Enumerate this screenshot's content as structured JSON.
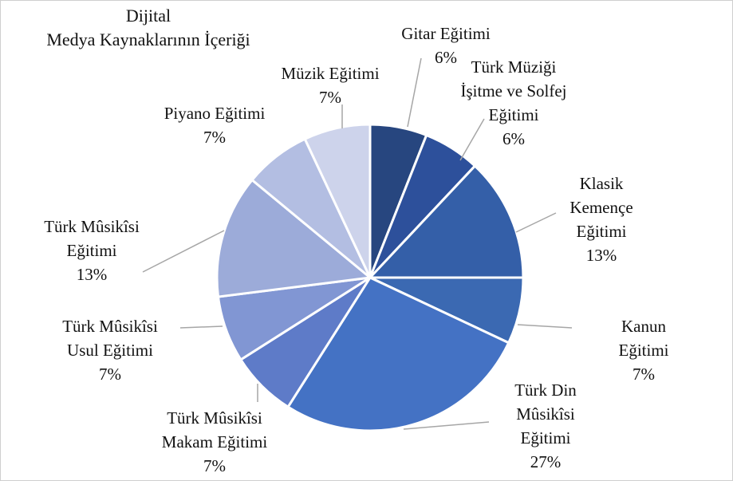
{
  "chart_data": {
    "type": "pie",
    "title": "Dijital\nMedya Kaynaklarının İçeriği",
    "categories": [
      "Gitar Eğitimi",
      "Türk Müziği\nİşitme ve Solfej\nEğitimi",
      "Klasik\nKemençe\nEğitimi",
      "Kanun Eğitimi",
      "Türk Din\nMûsikîsi\nEğitimi",
      "Türk Mûsikîsi\nMakam Eğitimi",
      "Türk Mûsikîsi\nUsul Eğitimi",
      "Türk Mûsikîsi\nEğitimi",
      "Piyano Eğitimi",
      "Müzik Eğitimi"
    ],
    "values": [
      6,
      6,
      13,
      7,
      27,
      7,
      7,
      13,
      7,
      7
    ],
    "value_labels": [
      "6%",
      "6%",
      "13%",
      "7%",
      "27%",
      "7%",
      "7%",
      "13%",
      "7%",
      "7%"
    ],
    "colors": [
      "#27467f",
      "#2d509b",
      "#345fa8",
      "#3b69b2",
      "#4472c4",
      "#5e7bc8",
      "#8196d3",
      "#9cabd9",
      "#b3bee2",
      "#cdd3eb"
    ]
  }
}
